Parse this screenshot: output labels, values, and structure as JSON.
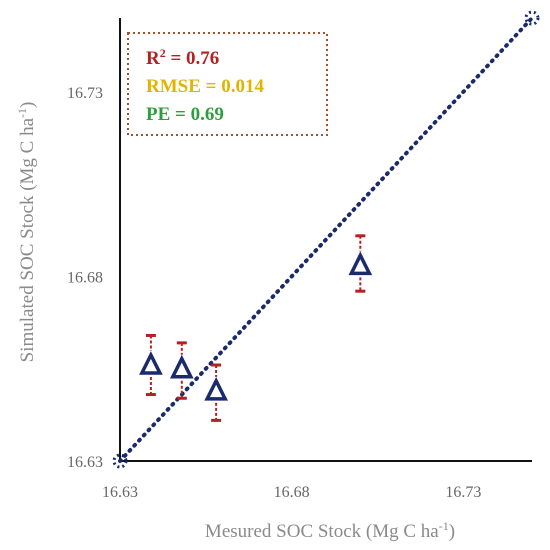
{
  "chart_data": {
    "type": "scatter",
    "title": "",
    "xlabel": "Mesured SOC Stock (Mg C ha",
    "xlabel_sup": "-1",
    "xlabel_tail": ")",
    "ylabel": "Simulated SOC Stock (Mg C ha",
    "ylabel_sup": "-1",
    "ylabel_tail": ")",
    "xlim": [
      16.63,
      16.75
    ],
    "ylim": [
      16.63,
      16.75
    ],
    "x_ticks": [
      "16.63",
      "16.68",
      "16.73"
    ],
    "y_ticks": [
      "16.63",
      "16.68",
      "16.73"
    ],
    "grid": false,
    "marker": "open-triangle",
    "marker_color": "#1a2a6b",
    "error_bar_color": "#b22222",
    "one_to_one_line": {
      "style": "dotted",
      "color": "#1a2a6b",
      "from": [
        16.63,
        16.63
      ],
      "to": [
        16.75,
        16.75
      ]
    },
    "points": [
      {
        "x": 16.639,
        "y": 16.656,
        "err_low": 16.648,
        "err_high": 16.664
      },
      {
        "x": 16.648,
        "y": 16.655,
        "err_low": 16.647,
        "err_high": 16.662
      },
      {
        "x": 16.658,
        "y": 16.649,
        "err_low": 16.641,
        "err_high": 16.656
      },
      {
        "x": 16.7,
        "y": 16.683,
        "err_low": 16.676,
        "err_high": 16.691
      }
    ],
    "stats": [
      {
        "label": "R",
        "sup": "2",
        "value": " = 0.76",
        "color": "#b22222"
      },
      {
        "label": "RMSE",
        "sup": "",
        "value": " = 0.014",
        "color": "#e0b400"
      },
      {
        "label": "PE",
        "sup": "",
        "value": " = 0.69",
        "color": "#2e9e3e"
      }
    ],
    "stats_box_border": "#a0522d"
  }
}
